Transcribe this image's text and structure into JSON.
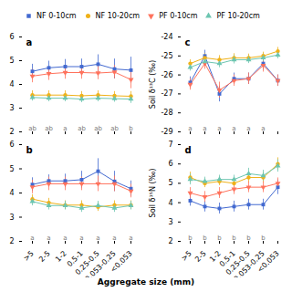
{
  "chart_data": [
    {
      "type": "line",
      "title": "a",
      "categories": [
        ">5",
        "2-5",
        "1-2",
        "0.5-1",
        "0.25-0.5",
        "0.053-0.25",
        "<0.053"
      ],
      "series": [
        {
          "name": "NF 0-10cm",
          "marker": "square",
          "values": [
            4.55,
            4.7,
            4.75,
            4.75,
            4.85,
            4.65,
            4.6
          ],
          "yerr": [
            0.3,
            0.28,
            0.3,
            0.32,
            0.4,
            0.42,
            0.55
          ]
        },
        {
          "name": "NF 10-20cm",
          "marker": "circle",
          "values": [
            3.55,
            3.55,
            3.55,
            3.52,
            3.55,
            3.52,
            3.5
          ],
          "yerr": [
            0.18,
            0.18,
            0.18,
            0.18,
            0.18,
            0.18,
            0.2
          ]
        },
        {
          "name": "PF 0-10cm",
          "marker": "triangle_down",
          "values": [
            4.35,
            4.45,
            4.5,
            4.5,
            4.48,
            4.52,
            4.2
          ],
          "yerr": [
            0.28,
            0.28,
            0.28,
            0.28,
            0.28,
            0.28,
            0.38
          ]
        },
        {
          "name": "PF 10-20cm",
          "marker": "triangle_up",
          "values": [
            3.45,
            3.42,
            3.42,
            3.38,
            3.42,
            3.4,
            3.38
          ],
          "yerr": [
            0.15,
            0.15,
            0.15,
            0.15,
            0.15,
            0.15,
            0.18
          ]
        }
      ],
      "ylim": [
        2.0,
        6.0
      ],
      "yticks": [
        2,
        3,
        4,
        5,
        6
      ],
      "annotations": [
        {
          "x": ">5",
          "text": "ab"
        },
        {
          "x": "2-5",
          "text": "ab"
        },
        {
          "x": "1-2",
          "text": "a"
        },
        {
          "x": "0.5-1",
          "text": "ab"
        },
        {
          "x": "0.25-0.5",
          "text": "ab"
        },
        {
          "x": "0.053-0.25",
          "text": "ab"
        },
        {
          "x": "<0.053",
          "text": "b"
        }
      ],
      "tick_labels": "y",
      "legend": "top"
    },
    {
      "type": "line",
      "title": "b",
      "xlabel": "Aggregate size (mm)",
      "categories": [
        ">5",
        "2-5",
        "1-2",
        "0.5-1",
        "0.25-0.5",
        "0.053-0.25",
        "<0.053"
      ],
      "series": [
        {
          "name": "NF 0-10cm",
          "marker": "square",
          "values": [
            4.35,
            4.5,
            4.5,
            4.55,
            4.9,
            4.48,
            4.18
          ],
          "yerr": [
            0.28,
            0.25,
            0.28,
            0.35,
            0.52,
            0.42,
            0.32
          ]
        },
        {
          "name": "NF 10-20cm",
          "marker": "circle",
          "values": [
            3.75,
            3.6,
            3.5,
            3.5,
            3.42,
            3.5,
            3.5
          ],
          "yerr": [
            0.18,
            0.18,
            0.18,
            0.18,
            0.18,
            0.18,
            0.18
          ]
        },
        {
          "name": "PF 0-10cm",
          "marker": "triangle_down",
          "values": [
            4.25,
            4.38,
            4.38,
            4.38,
            4.38,
            4.38,
            4.08
          ],
          "yerr": [
            0.28,
            0.28,
            0.28,
            0.28,
            0.32,
            0.32,
            0.28
          ]
        },
        {
          "name": "PF 10-20cm",
          "marker": "triangle_up",
          "values": [
            3.65,
            3.48,
            3.48,
            3.38,
            3.48,
            3.38,
            3.48
          ],
          "yerr": [
            0.18,
            0.18,
            0.18,
            0.18,
            0.18,
            0.18,
            0.18
          ]
        }
      ],
      "ylim": [
        2.0,
        6.0
      ],
      "yticks": [
        2,
        3,
        4,
        5,
        6
      ],
      "annotations": [
        {
          "x": ">5",
          "text": "a"
        },
        {
          "x": "2-5",
          "text": "a"
        },
        {
          "x": "1-2",
          "text": "a"
        },
        {
          "x": "0.5-1",
          "text": "a"
        },
        {
          "x": "0.25-0.5",
          "text": "a"
        },
        {
          "x": "0.053-0.25",
          "text": "a"
        },
        {
          "x": "<0.053",
          "text": "a"
        }
      ]
    },
    {
      "type": "line",
      "title": "c",
      "ylabel": "Soil δ¹³C (‰)",
      "categories": [
        ">5",
        "2-5",
        "1-2",
        "0.5-1",
        "0.25-0.5",
        "0.053-0.25",
        "<0.053"
      ],
      "series": [
        {
          "name": "NF 0-10cm",
          "marker": "square",
          "values": [
            -26.4,
            -25.0,
            -27.0,
            -26.2,
            -26.2,
            -25.4,
            -26.3
          ],
          "yerr": [
            0.3,
            0.3,
            0.42,
            0.3,
            0.3,
            0.35,
            0.3
          ]
        },
        {
          "name": "NF 10-20cm",
          "marker": "circle",
          "values": [
            -25.4,
            -25.1,
            -25.2,
            -25.1,
            -25.1,
            -25.0,
            -24.75
          ],
          "yerr": [
            0.2,
            0.22,
            0.22,
            0.22,
            0.2,
            0.2,
            0.2
          ]
        },
        {
          "name": "PF 0-10cm",
          "marker": "triangle_down",
          "values": [
            -26.5,
            -25.4,
            -26.8,
            -26.3,
            -26.2,
            -25.5,
            -26.3
          ],
          "yerr": [
            0.3,
            0.3,
            0.42,
            0.3,
            0.3,
            0.35,
            0.3
          ]
        },
        {
          "name": "PF 10-20cm",
          "marker": "triangle_up",
          "values": [
            -25.6,
            -25.3,
            -25.4,
            -25.2,
            -25.2,
            -25.1,
            -24.95
          ],
          "yerr": [
            0.2,
            0.22,
            0.22,
            0.22,
            0.2,
            0.2,
            0.2
          ]
        }
      ],
      "ylim": [
        -29,
        -24
      ],
      "yticks": [
        -29,
        -28,
        -27,
        -26,
        -25,
        -24
      ],
      "annotations": [
        {
          "x": ">5",
          "text": "a"
        },
        {
          "x": "2-5",
          "text": "a"
        },
        {
          "x": "1-2",
          "text": "a"
        },
        {
          "x": "0.5-1",
          "text": "a"
        },
        {
          "x": "0.25-0.5",
          "text": "a"
        },
        {
          "x": "0.053-0.25",
          "text": "a"
        }
      ],
      "tick_labels": "y"
    },
    {
      "type": "line",
      "title": "d",
      "ylabel": "Soil δ¹⁵N (‰)",
      "categories": [
        ">5",
        "2-5",
        "1-2",
        "0.5-1",
        "0.25-0.5",
        "0.053-0.25",
        "<0.053"
      ],
      "series": [
        {
          "name": "NF 0-10cm",
          "marker": "square",
          "values": [
            4.1,
            3.8,
            3.7,
            3.8,
            3.9,
            3.9,
            4.8
          ],
          "yerr": [
            0.28,
            0.28,
            0.28,
            0.28,
            0.28,
            0.28,
            0.38
          ]
        },
        {
          "name": "NF 10-20cm",
          "marker": "circle",
          "values": [
            5.3,
            5.0,
            5.1,
            5.0,
            5.3,
            5.3,
            6.0
          ],
          "yerr": [
            0.28,
            0.22,
            0.22,
            0.22,
            0.28,
            0.28,
            0.32
          ]
        },
        {
          "name": "PF 0-10cm",
          "marker": "triangle_down",
          "values": [
            4.5,
            4.3,
            4.5,
            4.7,
            4.8,
            4.8,
            5.0
          ],
          "yerr": [
            0.28,
            0.28,
            0.28,
            0.28,
            0.28,
            0.28,
            0.28
          ]
        },
        {
          "name": "PF 10-20cm",
          "marker": "triangle_up",
          "values": [
            5.2,
            5.1,
            5.2,
            5.2,
            5.5,
            5.4,
            5.9
          ],
          "yerr": [
            0.28,
            0.22,
            0.22,
            0.22,
            0.28,
            0.28,
            0.32
          ]
        }
      ],
      "ylim": [
        2,
        7
      ],
      "yticks": [
        2,
        3,
        4,
        5,
        6,
        7
      ],
      "annotations": [
        {
          "x": ">5",
          "text": "b"
        },
        {
          "x": "2-5",
          "text": "b"
        },
        {
          "x": "1-2",
          "text": "b"
        },
        {
          "x": "0.5-1",
          "text": "b"
        },
        {
          "x": "0.25-0.5",
          "text": "b"
        },
        {
          "x": "0.053-0.25",
          "text": "b"
        }
      ]
    }
  ]
}
